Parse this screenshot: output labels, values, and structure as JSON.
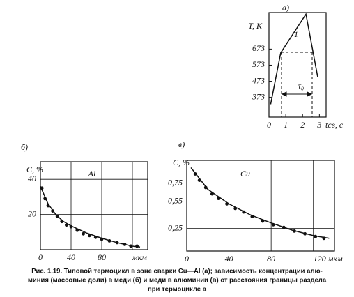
{
  "chart_data": [
    {
      "type": "line",
      "title": "а)",
      "y_label": "T, K",
      "x_label": "tсв, с",
      "x": [
        0.1,
        0.7,
        2.2,
        2.9
      ],
      "values": [
        330,
        650,
        890,
        500
      ],
      "color": "#111",
      "xlim": [
        0,
        3.4
      ],
      "ylim": [
        250,
        900
      ],
      "xticks": [
        0,
        1,
        2,
        3
      ],
      "yticks": [
        373,
        473,
        573,
        673
      ],
      "grid": false,
      "annotations": [
        "1",
        "τ₀"
      ]
    },
    {
      "type": "scatter",
      "title": "б)",
      "y_label": "C, %",
      "series": [
        {
          "type": "scatter",
          "color": "#111",
          "x": [
            2,
            6,
            10,
            16,
            22,
            28,
            34,
            40,
            48,
            56,
            64,
            72,
            80,
            90,
            100,
            110,
            118,
            126
          ],
          "values": [
            35,
            29,
            25,
            22,
            19,
            16,
            14,
            13,
            11,
            9,
            8,
            7,
            6,
            5,
            4,
            3,
            2,
            2
          ]
        },
        {
          "type": "line",
          "color": "#111",
          "x": [
            0,
            10,
            20,
            30,
            40,
            60,
            80,
            100,
            120,
            130
          ],
          "values": [
            36,
            26,
            20,
            16,
            13.5,
            9.5,
            6.5,
            4,
            2,
            1.5
          ]
        }
      ],
      "xlim": [
        0,
        140
      ],
      "ylim": [
        0,
        50
      ],
      "xticks": [
        0,
        40,
        80,
        {
          "value": 120,
          "label": "мкм"
        }
      ],
      "yticks": [
        20,
        40
      ],
      "grid": true,
      "annotations": [
        "Al"
      ]
    },
    {
      "type": "scatter",
      "title": "в)",
      "y_label": "C, %",
      "series": [
        {
          "type": "scatter",
          "color": "#111",
          "x": [
            8,
            12,
            18,
            24,
            30,
            38,
            46,
            54,
            62,
            72,
            82,
            92,
            102,
            112,
            122,
            130
          ],
          "values": [
            0.85,
            0.78,
            0.7,
            0.63,
            0.58,
            0.52,
            0.47,
            0.43,
            0.38,
            0.33,
            0.29,
            0.26,
            0.22,
            0.19,
            0.16,
            0.14
          ]
        },
        {
          "type": "line",
          "color": "#111",
          "x": [
            4,
            20,
            40,
            60,
            80,
            100,
            120,
            135
          ],
          "values": [
            0.92,
            0.68,
            0.52,
            0.4,
            0.31,
            0.23,
            0.17,
            0.14
          ]
        }
      ],
      "xlim": [
        0,
        140
      ],
      "ylim": [
        0,
        1.0
      ],
      "xticks": [
        0,
        40,
        80,
        {
          "value": 120,
          "label": "120 мкм"
        }
      ],
      "yticks": [
        {
          "value": 0.25,
          "label": "0,25"
        },
        {
          "value": 0.55,
          "label": "0,55"
        },
        {
          "value": 0.75,
          "label": "0,75"
        }
      ],
      "grid": true,
      "annotations": [
        "Cu"
      ]
    }
  ],
  "caption": [
    "Рис. 1.19. Типовой термоцикл в зоне сварки Cu—Al (а); зависимость концентрации алю-",
    "миния (массовые доли) в меди (б) и меди в алюминии (в) от расстояния границы раздела",
    "при термоцикле а"
  ]
}
